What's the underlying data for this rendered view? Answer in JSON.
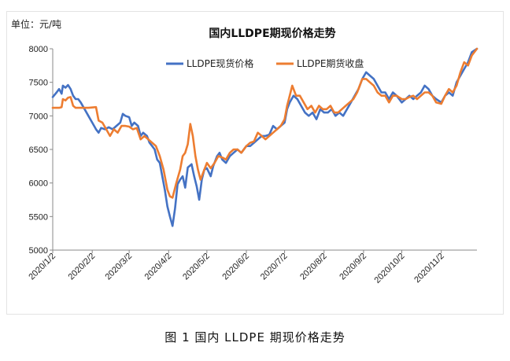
{
  "caption": "图 1  国内 LLDPE 期现价格走势",
  "chart_data": {
    "type": "line",
    "title": "国内LLDPE期现价格走势",
    "unit_label": "单位：元/吨",
    "ylim": [
      5000,
      8000
    ],
    "yticks": [
      5000,
      5500,
      6000,
      6500,
      7000,
      7500,
      8000
    ],
    "xlim": [
      "2020-01-02",
      "2020-11-30"
    ],
    "x_ticks": [
      {
        "label": "2020/1/2",
        "date": "2020-01-02"
      },
      {
        "label": "2020/2/2",
        "date": "2020-02-02"
      },
      {
        "label": "2020/3/2",
        "date": "2020-03-02"
      },
      {
        "label": "2020/4/2",
        "date": "2020-04-02"
      },
      {
        "label": "2020/5/2",
        "date": "2020-05-02"
      },
      {
        "label": "2020/6/2",
        "date": "2020-06-02"
      },
      {
        "label": "2020/7/2",
        "date": "2020-07-02"
      },
      {
        "label": "2020/8/2",
        "date": "2020-08-02"
      },
      {
        "label": "2020/9/2",
        "date": "2020-09-02"
      },
      {
        "label": "2020/10/2",
        "date": "2020-10-02"
      },
      {
        "label": "2020/11/2",
        "date": "2020-11-02"
      }
    ],
    "grid": false,
    "legend_position": "top-center",
    "series": [
      {
        "name": "LLDPE现货价格",
        "color": "#4472c4",
        "points": [
          [
            "2020-01-02",
            7280
          ],
          [
            "2020-01-05",
            7350
          ],
          [
            "2020-01-07",
            7400
          ],
          [
            "2020-01-09",
            7330
          ],
          [
            "2020-01-10",
            7450
          ],
          [
            "2020-01-12",
            7420
          ],
          [
            "2020-01-14",
            7460
          ],
          [
            "2020-01-16",
            7400
          ],
          [
            "2020-01-18",
            7300
          ],
          [
            "2020-01-20",
            7250
          ],
          [
            "2020-01-22",
            7250
          ],
          [
            "2020-01-24",
            7200
          ],
          [
            "2020-01-27",
            7100
          ],
          [
            "2020-01-30",
            7000
          ],
          [
            "2020-02-02",
            6900
          ],
          [
            "2020-02-05",
            6800
          ],
          [
            "2020-02-07",
            6750
          ],
          [
            "2020-02-09",
            6820
          ],
          [
            "2020-02-12",
            6800
          ],
          [
            "2020-02-15",
            6830
          ],
          [
            "2020-02-18",
            6800
          ],
          [
            "2020-02-21",
            6850
          ],
          [
            "2020-02-24",
            6900
          ],
          [
            "2020-02-26",
            7030
          ],
          [
            "2020-02-28",
            7000
          ],
          [
            "2020-03-02",
            6980
          ],
          [
            "2020-03-04",
            6850
          ],
          [
            "2020-03-06",
            6900
          ],
          [
            "2020-03-09",
            6850
          ],
          [
            "2020-03-11",
            6700
          ],
          [
            "2020-03-13",
            6750
          ],
          [
            "2020-03-16",
            6700
          ],
          [
            "2020-03-18",
            6600
          ],
          [
            "2020-03-20",
            6550
          ],
          [
            "2020-03-22",
            6500
          ],
          [
            "2020-03-24",
            6350
          ],
          [
            "2020-03-26",
            6300
          ],
          [
            "2020-03-28",
            6100
          ],
          [
            "2020-03-30",
            5900
          ],
          [
            "2020-04-01",
            5650
          ],
          [
            "2020-04-03",
            5500
          ],
          [
            "2020-04-05",
            5360
          ],
          [
            "2020-04-07",
            5620
          ],
          [
            "2020-04-09",
            5980
          ],
          [
            "2020-04-11",
            6050
          ],
          [
            "2020-04-13",
            6100
          ],
          [
            "2020-04-15",
            5930
          ],
          [
            "2020-04-17",
            6230
          ],
          [
            "2020-04-20",
            6280
          ],
          [
            "2020-04-22",
            6100
          ],
          [
            "2020-04-24",
            5950
          ],
          [
            "2020-04-26",
            5750
          ],
          [
            "2020-04-28",
            6050
          ],
          [
            "2020-04-30",
            6200
          ],
          [
            "2020-05-02",
            6220
          ],
          [
            "2020-05-05",
            6100
          ],
          [
            "2020-05-07",
            6250
          ],
          [
            "2020-05-10",
            6400
          ],
          [
            "2020-05-12",
            6450
          ],
          [
            "2020-05-14",
            6350
          ],
          [
            "2020-05-17",
            6300
          ],
          [
            "2020-05-20",
            6400
          ],
          [
            "2020-05-23",
            6450
          ],
          [
            "2020-05-26",
            6500
          ],
          [
            "2020-05-29",
            6450
          ],
          [
            "2020-06-02",
            6550
          ],
          [
            "2020-06-05",
            6550
          ],
          [
            "2020-06-08",
            6600
          ],
          [
            "2020-06-11",
            6650
          ],
          [
            "2020-06-14",
            6700
          ],
          [
            "2020-06-17",
            6700
          ],
          [
            "2020-06-20",
            6720
          ],
          [
            "2020-06-23",
            6850
          ],
          [
            "2020-06-26",
            6800
          ],
          [
            "2020-06-29",
            6850
          ],
          [
            "2020-07-02",
            6900
          ],
          [
            "2020-07-04",
            7100
          ],
          [
            "2020-07-06",
            7200
          ],
          [
            "2020-07-09",
            7300
          ],
          [
            "2020-07-12",
            7250
          ],
          [
            "2020-07-15",
            7150
          ],
          [
            "2020-07-18",
            7050
          ],
          [
            "2020-07-21",
            7000
          ],
          [
            "2020-07-24",
            7050
          ],
          [
            "2020-07-27",
            6950
          ],
          [
            "2020-07-30",
            7100
          ],
          [
            "2020-08-02",
            7050
          ],
          [
            "2020-08-05",
            7050
          ],
          [
            "2020-08-08",
            7100
          ],
          [
            "2020-08-11",
            7000
          ],
          [
            "2020-08-14",
            7050
          ],
          [
            "2020-08-17",
            7000
          ],
          [
            "2020-08-20",
            7100
          ],
          [
            "2020-08-23",
            7200
          ],
          [
            "2020-08-26",
            7300
          ],
          [
            "2020-08-29",
            7400
          ],
          [
            "2020-09-01",
            7550
          ],
          [
            "2020-09-04",
            7650
          ],
          [
            "2020-09-07",
            7600
          ],
          [
            "2020-09-10",
            7550
          ],
          [
            "2020-09-13",
            7450
          ],
          [
            "2020-09-16",
            7350
          ],
          [
            "2020-09-19",
            7350
          ],
          [
            "2020-09-22",
            7250
          ],
          [
            "2020-09-25",
            7350
          ],
          [
            "2020-09-28",
            7300
          ],
          [
            "2020-10-02",
            7200
          ],
          [
            "2020-10-05",
            7250
          ],
          [
            "2020-10-08",
            7300
          ],
          [
            "2020-10-11",
            7250
          ],
          [
            "2020-10-14",
            7300
          ],
          [
            "2020-10-17",
            7350
          ],
          [
            "2020-10-20",
            7450
          ],
          [
            "2020-10-23",
            7400
          ],
          [
            "2020-10-26",
            7300
          ],
          [
            "2020-10-29",
            7250
          ],
          [
            "2020-11-02",
            7200
          ],
          [
            "2020-11-05",
            7300
          ],
          [
            "2020-11-08",
            7350
          ],
          [
            "2020-11-11",
            7300
          ],
          [
            "2020-11-14",
            7500
          ],
          [
            "2020-11-17",
            7600
          ],
          [
            "2020-11-20",
            7700
          ],
          [
            "2020-11-23",
            7800
          ],
          [
            "2020-11-26",
            7950
          ],
          [
            "2020-11-30",
            8000
          ]
        ]
      },
      {
        "name": "LLDPE期货收盘",
        "color": "#ed7d31",
        "points": [
          [
            "2020-01-02",
            7120
          ],
          [
            "2020-01-07",
            7120
          ],
          [
            "2020-01-09",
            7130
          ],
          [
            "2020-01-10",
            7250
          ],
          [
            "2020-01-12",
            7230
          ],
          [
            "2020-01-14",
            7270
          ],
          [
            "2020-01-16",
            7280
          ],
          [
            "2020-01-18",
            7150
          ],
          [
            "2020-01-20",
            7120
          ],
          [
            "2020-01-30",
            7120
          ],
          [
            "2020-02-05",
            7130
          ],
          [
            "2020-02-07",
            6930
          ],
          [
            "2020-02-10",
            6900
          ],
          [
            "2020-02-13",
            6800
          ],
          [
            "2020-02-16",
            6700
          ],
          [
            "2020-02-19",
            6800
          ],
          [
            "2020-02-22",
            6750
          ],
          [
            "2020-02-25",
            6850
          ],
          [
            "2020-02-28",
            6850
          ],
          [
            "2020-03-02",
            6840
          ],
          [
            "2020-03-05",
            6800
          ],
          [
            "2020-03-08",
            6820
          ],
          [
            "2020-03-11",
            6650
          ],
          [
            "2020-03-14",
            6700
          ],
          [
            "2020-03-17",
            6650
          ],
          [
            "2020-03-20",
            6600
          ],
          [
            "2020-03-23",
            6550
          ],
          [
            "2020-03-26",
            6400
          ],
          [
            "2020-03-29",
            6200
          ],
          [
            "2020-04-01",
            5900
          ],
          [
            "2020-04-03",
            5800
          ],
          [
            "2020-04-05",
            5780
          ],
          [
            "2020-04-08",
            6000
          ],
          [
            "2020-04-11",
            6200
          ],
          [
            "2020-04-13",
            6400
          ],
          [
            "2020-04-15",
            6450
          ],
          [
            "2020-04-17",
            6580
          ],
          [
            "2020-04-19",
            6880
          ],
          [
            "2020-04-21",
            6700
          ],
          [
            "2020-04-23",
            6400
          ],
          [
            "2020-04-25",
            6200
          ],
          [
            "2020-04-27",
            6050
          ],
          [
            "2020-04-29",
            6150
          ],
          [
            "2020-05-02",
            6300
          ],
          [
            "2020-05-05",
            6220
          ],
          [
            "2020-05-08",
            6300
          ],
          [
            "2020-05-11",
            6400
          ],
          [
            "2020-05-14",
            6380
          ],
          [
            "2020-05-17",
            6350
          ],
          [
            "2020-05-20",
            6450
          ],
          [
            "2020-05-23",
            6500
          ],
          [
            "2020-05-26",
            6500
          ],
          [
            "2020-05-29",
            6450
          ],
          [
            "2020-06-02",
            6550
          ],
          [
            "2020-06-05",
            6600
          ],
          [
            "2020-06-08",
            6620
          ],
          [
            "2020-06-11",
            6750
          ],
          [
            "2020-06-14",
            6700
          ],
          [
            "2020-06-17",
            6650
          ],
          [
            "2020-06-20",
            6700
          ],
          [
            "2020-06-23",
            6750
          ],
          [
            "2020-06-26",
            6800
          ],
          [
            "2020-06-29",
            6850
          ],
          [
            "2020-07-02",
            6950
          ],
          [
            "2020-07-04",
            7150
          ],
          [
            "2020-07-06",
            7300
          ],
          [
            "2020-07-08",
            7450
          ],
          [
            "2020-07-11",
            7300
          ],
          [
            "2020-07-14",
            7300
          ],
          [
            "2020-07-17",
            7200
          ],
          [
            "2020-07-20",
            7100
          ],
          [
            "2020-07-23",
            7150
          ],
          [
            "2020-07-26",
            7050
          ],
          [
            "2020-07-29",
            7150
          ],
          [
            "2020-08-01",
            7100
          ],
          [
            "2020-08-04",
            7100
          ],
          [
            "2020-08-07",
            7150
          ],
          [
            "2020-08-10",
            7050
          ],
          [
            "2020-08-13",
            7050
          ],
          [
            "2020-08-16",
            7100
          ],
          [
            "2020-08-19",
            7150
          ],
          [
            "2020-08-22",
            7200
          ],
          [
            "2020-08-25",
            7250
          ],
          [
            "2020-08-28",
            7350
          ],
          [
            "2020-09-01",
            7550
          ],
          [
            "2020-09-04",
            7550
          ],
          [
            "2020-09-07",
            7500
          ],
          [
            "2020-09-10",
            7450
          ],
          [
            "2020-09-13",
            7350
          ],
          [
            "2020-09-16",
            7300
          ],
          [
            "2020-09-19",
            7300
          ],
          [
            "2020-09-22",
            7200
          ],
          [
            "2020-09-25",
            7300
          ],
          [
            "2020-09-28",
            7300
          ],
          [
            "2020-10-02",
            7250
          ],
          [
            "2020-10-05",
            7250
          ],
          [
            "2020-10-08",
            7280
          ],
          [
            "2020-10-11",
            7300
          ],
          [
            "2020-10-14",
            7250
          ],
          [
            "2020-10-17",
            7300
          ],
          [
            "2020-10-20",
            7350
          ],
          [
            "2020-10-23",
            7350
          ],
          [
            "2020-10-26",
            7300
          ],
          [
            "2020-10-29",
            7200
          ],
          [
            "2020-11-02",
            7180
          ],
          [
            "2020-11-05",
            7300
          ],
          [
            "2020-11-08",
            7400
          ],
          [
            "2020-11-11",
            7350
          ],
          [
            "2020-11-14",
            7450
          ],
          [
            "2020-11-17",
            7650
          ],
          [
            "2020-11-20",
            7800
          ],
          [
            "2020-11-23",
            7750
          ],
          [
            "2020-11-26",
            7900
          ],
          [
            "2020-11-30",
            8000
          ]
        ]
      }
    ]
  }
}
